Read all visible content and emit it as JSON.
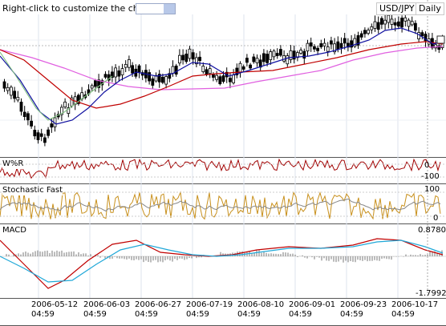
{
  "header": {
    "hint_text": "Right-click to customize the chart",
    "symbol": "USD/JPY",
    "timeframe": "Daily"
  },
  "panels": {
    "wpr": {
      "label": "W%R",
      "top_value": "0",
      "bottom_value": "-100"
    },
    "stoch": {
      "label": "Stochastic Fast",
      "top_value": "100",
      "bottom_value": "0"
    },
    "macd": {
      "label": "MACD",
      "top_value": "0.8780",
      "bottom_value": "-1.7992"
    }
  },
  "x_axis": {
    "labels": [
      {
        "date": "2006-05-12",
        "time": "04:59"
      },
      {
        "date": "2006-06-03",
        "time": "04:59"
      },
      {
        "date": "2006-06-27",
        "time": "04:59"
      },
      {
        "date": "2006-07-19",
        "time": "04:59"
      },
      {
        "date": "2006-08-10",
        "time": "04:59"
      },
      {
        "date": "2006-09-01",
        "time": "04:59"
      },
      {
        "date": "2006-09-23",
        "time": "04:59"
      },
      {
        "date": "2006-10-17",
        "time": "04:59"
      }
    ]
  },
  "colors": {
    "ma_fast": "#1010a0",
    "ma_slow": "#c00000",
    "ma_long": "#e060e0",
    "ma_green": "#80c080",
    "stoch_k": "#c8901c",
    "stoch_d": "#888888",
    "macd_line": "#c00000",
    "signal_line": "#20a8d8",
    "hist": "#777777",
    "wpr": "#a00000"
  }
}
